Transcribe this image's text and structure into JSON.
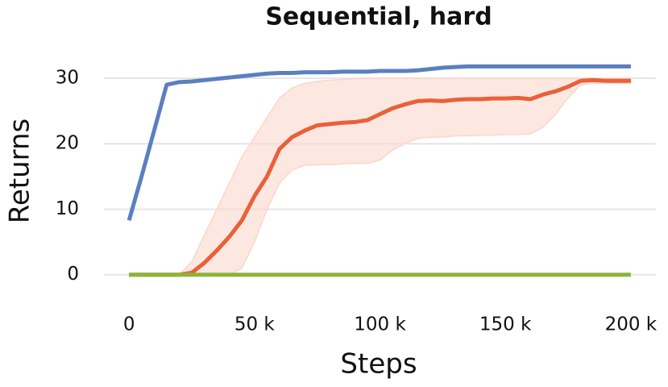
{
  "chart_data": {
    "type": "line",
    "title": "Sequential, hard",
    "x_label": "Steps",
    "y_label": "Returns",
    "x": [
      0,
      5000,
      10000,
      15000,
      20000,
      25000,
      30000,
      35000,
      40000,
      45000,
      50000,
      55000,
      60000,
      65000,
      70000,
      75000,
      80000,
      85000,
      90000,
      95000,
      100000,
      105000,
      110000,
      115000,
      120000,
      125000,
      130000,
      135000,
      140000,
      145000,
      150000,
      155000,
      160000,
      165000,
      170000,
      175000,
      180000,
      185000,
      190000,
      195000,
      200000
    ],
    "series": [
      {
        "color": "#5b7fbf",
        "values": [
          8.3,
          15,
          22,
          29,
          29.4,
          29.5,
          29.7,
          29.9,
          30.1,
          30.3,
          30.5,
          30.7,
          30.8,
          30.8,
          30.9,
          30.9,
          30.9,
          31,
          31,
          31,
          31.1,
          31.1,
          31.1,
          31.2,
          31.4,
          31.6,
          31.7,
          31.8,
          31.8,
          31.8,
          31.8,
          31.8,
          31.8,
          31.8,
          31.8,
          31.8,
          31.8,
          31.8,
          31.8,
          31.8,
          31.8
        ]
      },
      {
        "color": "#e8613a",
        "band_color": "#fbd6c9",
        "values": [
          0,
          0,
          0,
          0,
          0,
          0.3,
          1.8,
          3.7,
          5.8,
          8.3,
          12,
          15,
          19.2,
          21,
          22,
          22.8,
          23,
          23.2,
          23.3,
          23.6,
          24.5,
          25.4,
          26,
          26.5,
          26.6,
          26.5,
          26.7,
          26.8,
          26.8,
          26.9,
          26.9,
          27,
          26.8,
          27.5,
          28,
          28.7,
          29.6,
          29.7,
          29.6,
          29.6,
          29.6
        ],
        "lower": [
          0,
          0,
          0,
          0,
          0,
          0,
          0,
          0,
          0,
          1,
          5,
          10,
          14,
          16,
          16.7,
          16.8,
          16.8,
          16.9,
          17,
          17,
          17.5,
          19,
          20,
          20.8,
          21,
          21,
          21.2,
          21.2,
          21.3,
          21.3,
          21.4,
          21.4,
          21.5,
          22.5,
          24.5,
          27,
          29,
          29.2,
          29.2,
          29.2,
          29.2
        ],
        "upper": [
          0,
          0,
          0,
          0,
          0,
          2,
          6,
          10,
          14,
          18,
          21,
          24,
          27,
          28.5,
          29.2,
          29.5,
          29.7,
          29.8,
          29.9,
          30,
          30,
          30,
          30,
          30,
          30,
          30,
          30,
          30,
          30,
          30,
          30,
          30,
          30,
          30,
          30,
          30,
          30,
          30,
          30,
          30,
          30
        ]
      },
      {
        "color": "#8db43a",
        "values": [
          0,
          0,
          0,
          0,
          0,
          0,
          0,
          0,
          0,
          0,
          0,
          0,
          0,
          0,
          0,
          0,
          0,
          0,
          0,
          0,
          0,
          0,
          0,
          0,
          0,
          0,
          0,
          0,
          0,
          0,
          0,
          0,
          0,
          0,
          0,
          0,
          0,
          0,
          0,
          0,
          0
        ]
      }
    ],
    "xlim": [
      -10000,
      210000
    ],
    "ylim": [
      -2,
      33
    ],
    "xticks": [
      0,
      {
        "value": 50000,
        "label": "50 k"
      },
      {
        "value": 100000,
        "label": "100 k"
      },
      {
        "value": 150000,
        "label": "150 k"
      },
      {
        "value": 200000,
        "label": "200 k"
      }
    ],
    "yticks": [
      0,
      10,
      20,
      30
    ],
    "grid": true
  }
}
